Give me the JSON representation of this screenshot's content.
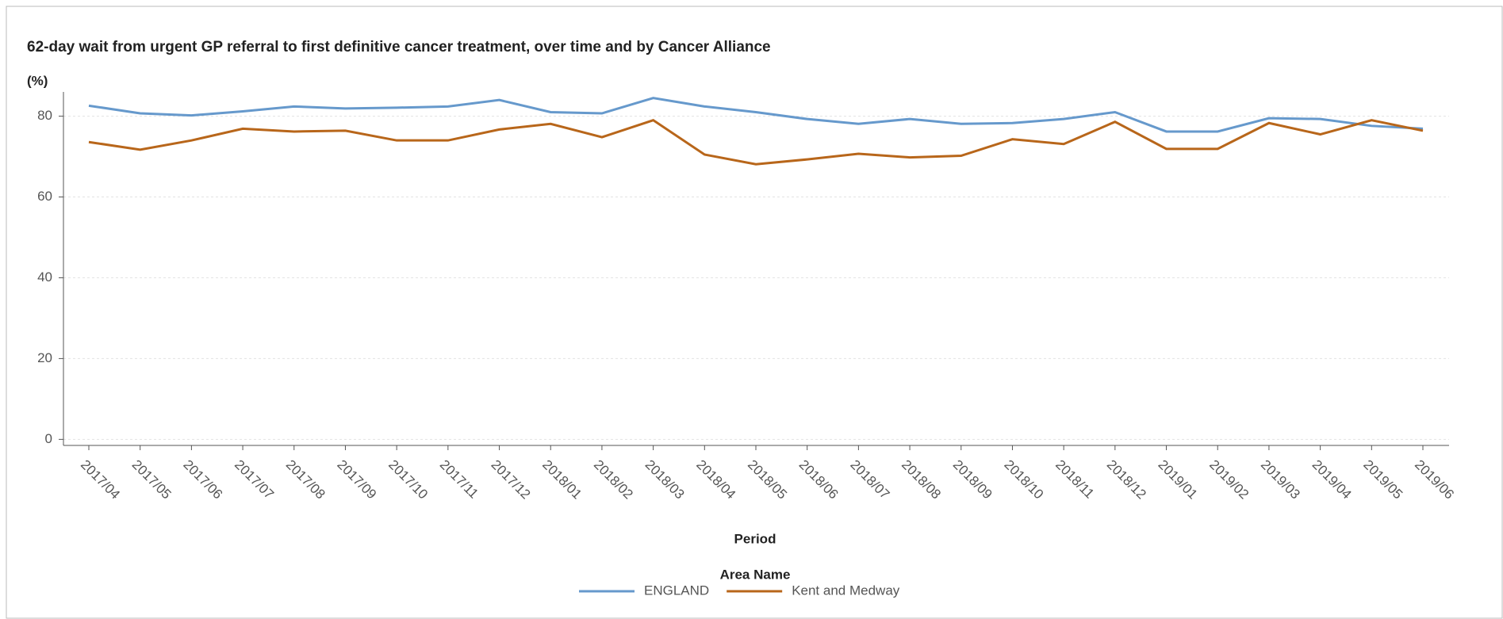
{
  "chart_data": {
    "type": "line",
    "title": "62-day wait from urgent GP referral to first definitive cancer treatment, over time and by Cancer Alliance",
    "y_label": "(%)",
    "x_label": "Period",
    "legend_title": "Area Name",
    "categories": [
      "2017/04",
      "2017/05",
      "2017/06",
      "2017/07",
      "2017/08",
      "2017/09",
      "2017/10",
      "2017/11",
      "2017/12",
      "2018/01",
      "2018/02",
      "2018/03",
      "2018/04",
      "2018/05",
      "2018/06",
      "2018/07",
      "2018/08",
      "2018/09",
      "2018/10",
      "2018/11",
      "2018/12",
      "2019/01",
      "2019/02",
      "2019/03",
      "2019/04",
      "2019/05",
      "2019/06"
    ],
    "series": [
      {
        "name": "ENGLAND",
        "color": "#6699cc",
        "values": [
          82.6,
          80.7,
          80.2,
          81.2,
          82.4,
          81.9,
          82.1,
          82.4,
          84.0,
          81.0,
          80.7,
          84.5,
          82.4,
          81.0,
          79.3,
          78.1,
          79.3,
          78.1,
          78.3,
          79.3,
          81.0,
          76.2,
          76.2,
          79.5,
          79.3,
          77.6,
          76.9
        ]
      },
      {
        "name": "Kent and Medway",
        "color": "#b8661a",
        "values": [
          73.6,
          71.7,
          74.0,
          76.9,
          76.2,
          76.4,
          74.0,
          74.0,
          76.7,
          78.1,
          74.8,
          79.0,
          70.5,
          68.1,
          69.3,
          70.7,
          69.8,
          70.2,
          74.3,
          73.1,
          78.6,
          71.9,
          71.9,
          78.3,
          75.5,
          79.0,
          76.4
        ]
      }
    ],
    "ylim": [
      -1.5,
      86
    ],
    "yticks": [
      0,
      20,
      40,
      60,
      80
    ],
    "grid": true
  }
}
